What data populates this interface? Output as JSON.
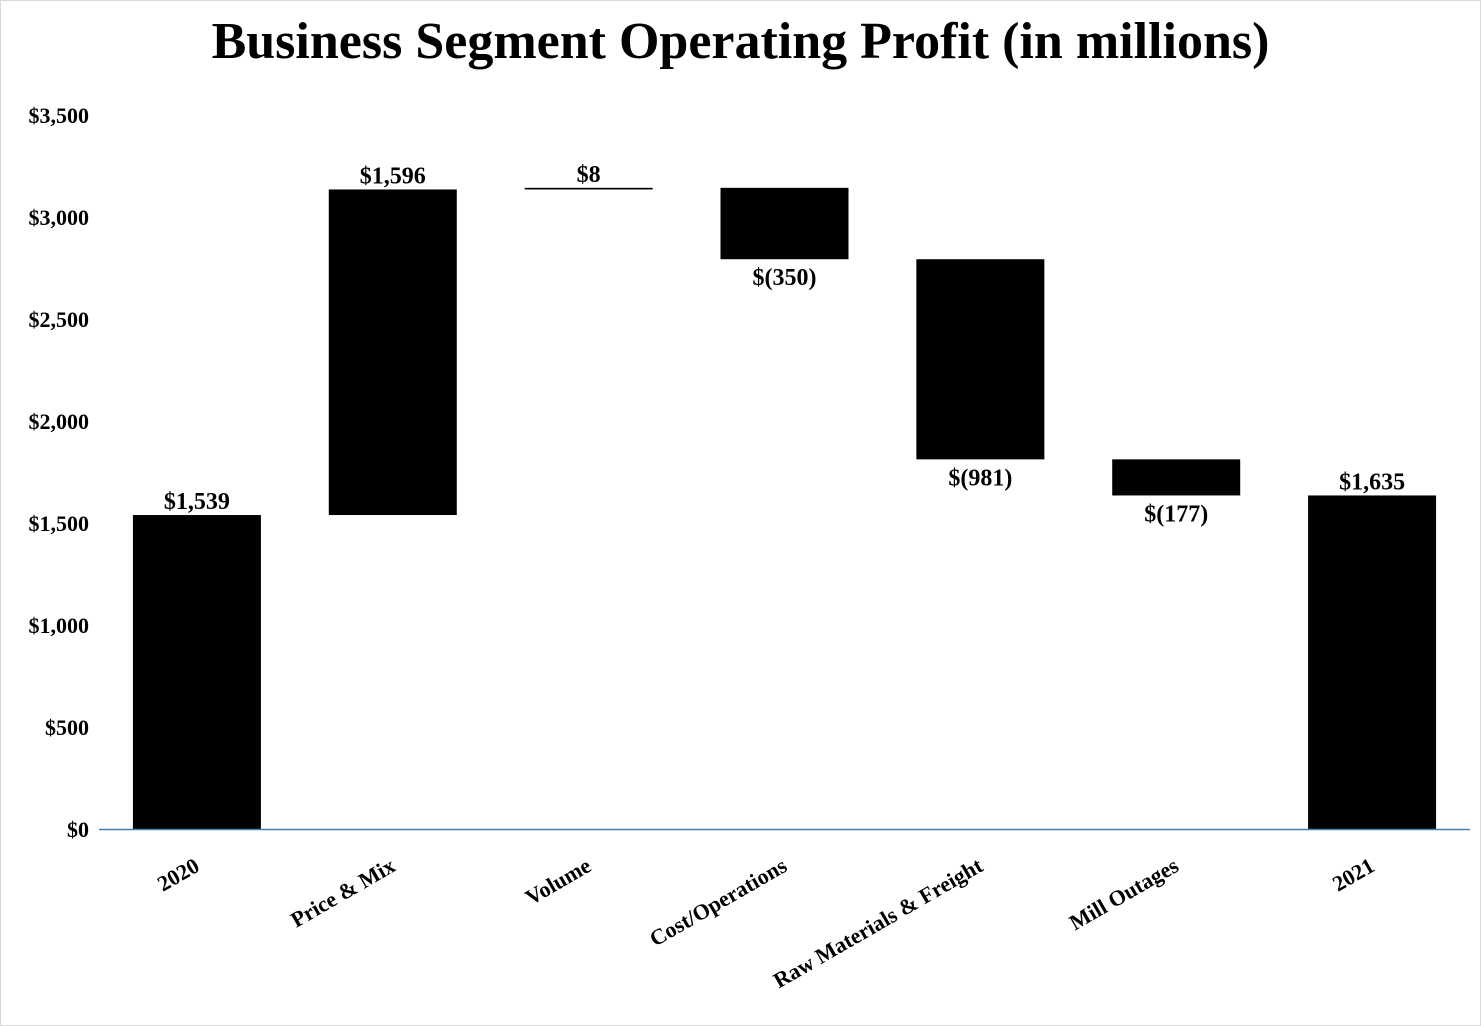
{
  "chart_data": {
    "type": "waterfall",
    "title": "Business Segment Operating Profit (in millions)",
    "xlabel": "",
    "ylabel": "",
    "ylim": [
      0,
      3500
    ],
    "yticks": [
      0,
      500,
      1000,
      1500,
      2000,
      2500,
      3000,
      3500
    ],
    "ytick_labels": [
      "$0",
      "$500",
      "$1,000",
      "$1,500",
      "$2,000",
      "$2,500",
      "$3,000",
      "$3,500"
    ],
    "grid": false,
    "categories": [
      "2020",
      "Price & Mix",
      "Volume",
      "Cost/Operations",
      "Raw Materials & Freight",
      "Mill Outages",
      "2021"
    ],
    "values": [
      1539,
      1596,
      8,
      -350,
      -981,
      -177,
      1635
    ],
    "kinds": [
      "total",
      "delta",
      "delta",
      "delta",
      "delta",
      "delta",
      "total"
    ],
    "data_labels": [
      "$1,539",
      "$1,596",
      "$8",
      "$(350)",
      "$(981)",
      "$(177)",
      "$1,635"
    ],
    "colors": {
      "bar": "#000000",
      "axis": "#4a7ea8"
    }
  }
}
